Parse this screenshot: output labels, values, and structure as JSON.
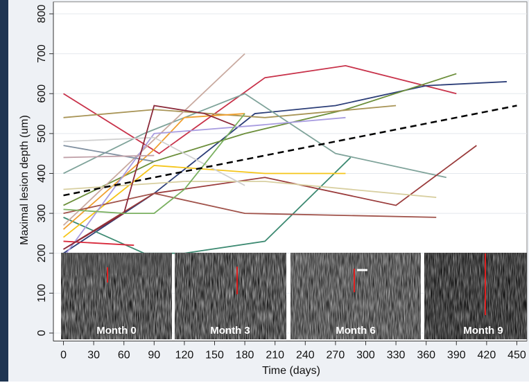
{
  "chart_data": {
    "type": "line",
    "xlabel": "Time (days)",
    "ylabel": "Maximal lesion depth (um)",
    "xlim": [
      -10,
      460
    ],
    "ylim": [
      -20,
      830
    ],
    "xticks": [
      0,
      30,
      60,
      90,
      120,
      150,
      180,
      210,
      240,
      270,
      300,
      330,
      360,
      390,
      420,
      450
    ],
    "yticks": [
      0,
      100,
      200,
      300,
      400,
      500,
      600,
      700,
      800
    ],
    "grid": true,
    "series": [
      {
        "color": "#c8324a",
        "x": [
          0,
          95,
          200,
          280,
          390
        ],
        "values": [
          600,
          450,
          640,
          670,
          600
        ]
      },
      {
        "color": "#2c3e78",
        "x": [
          0,
          90,
          190,
          270,
          360,
          440
        ],
        "values": [
          200,
          350,
          550,
          570,
          620,
          630
        ]
      },
      {
        "color": "#6b8e3a",
        "x": [
          0,
          90,
          180,
          280,
          390
        ],
        "values": [
          320,
          430,
          500,
          560,
          650
        ]
      },
      {
        "color": "#a89456",
        "x": [
          0,
          90,
          200,
          330
        ],
        "values": [
          540,
          560,
          540,
          570
        ]
      },
      {
        "color": "#7fa39a",
        "x": [
          0,
          80,
          180,
          270,
          380
        ],
        "values": [
          400,
          500,
          600,
          450,
          390
        ]
      },
      {
        "color": "#3d8a72",
        "x": [
          0,
          80,
          120,
          200,
          285
        ],
        "values": [
          290,
          200,
          200,
          230,
          440
        ]
      },
      {
        "color": "#9a3b3b",
        "x": [
          0,
          90,
          200,
          330,
          410
        ],
        "values": [
          210,
          350,
          390,
          320,
          470
        ]
      },
      {
        "color": "#c9aaa0",
        "x": [
          0,
          180
        ],
        "values": [
          270,
          700
        ]
      },
      {
        "color": "#f0a030",
        "x": [
          0,
          90,
          120,
          180
        ],
        "values": [
          260,
          460,
          540,
          550
        ]
      },
      {
        "color": "#f5c518",
        "x": [
          0,
          90,
          200,
          280
        ],
        "values": [
          240,
          420,
          400,
          400
        ]
      },
      {
        "color": "#d8cfa0",
        "x": [
          0,
          120,
          200,
          370
        ],
        "values": [
          360,
          380,
          380,
          340
        ]
      },
      {
        "color": "#a0524a",
        "x": [
          0,
          90,
          180,
          370
        ],
        "values": [
          300,
          350,
          300,
          290
        ]
      },
      {
        "color": "#a89ce0",
        "x": [
          0,
          90,
          190,
          280
        ],
        "values": [
          190,
          500,
          520,
          540
        ]
      },
      {
        "color": "#d8283a",
        "x": [
          0,
          70
        ],
        "values": [
          230,
          220
        ]
      },
      {
        "color": "#d0d0d0",
        "x": [
          0,
          90,
          180
        ],
        "values": [
          480,
          490,
          370
        ]
      },
      {
        "color": "#8090a0",
        "x": [
          0,
          90
        ],
        "values": [
          470,
          430
        ]
      },
      {
        "color": "#8b2a3a",
        "x": [
          0,
          60,
          90,
          140,
          170
        ],
        "values": [
          210,
          300,
          570,
          550,
          520
        ]
      },
      {
        "color": "#c0a0a8",
        "x": [
          0,
          90
        ],
        "values": [
          440,
          445
        ]
      },
      {
        "color": "#7ab060",
        "x": [
          0,
          60,
          90,
          120,
          180
        ],
        "values": [
          310,
          300,
          300,
          360,
          550
        ]
      },
      {
        "color": "#000000",
        "dash": true,
        "x": [
          0,
          450
        ],
        "values": [
          345,
          570
        ]
      }
    ]
  },
  "insets": [
    {
      "label": "Month 0"
    },
    {
      "label": "Month 3"
    },
    {
      "label": "Month 6"
    },
    {
      "label": "Month 9"
    }
  ]
}
